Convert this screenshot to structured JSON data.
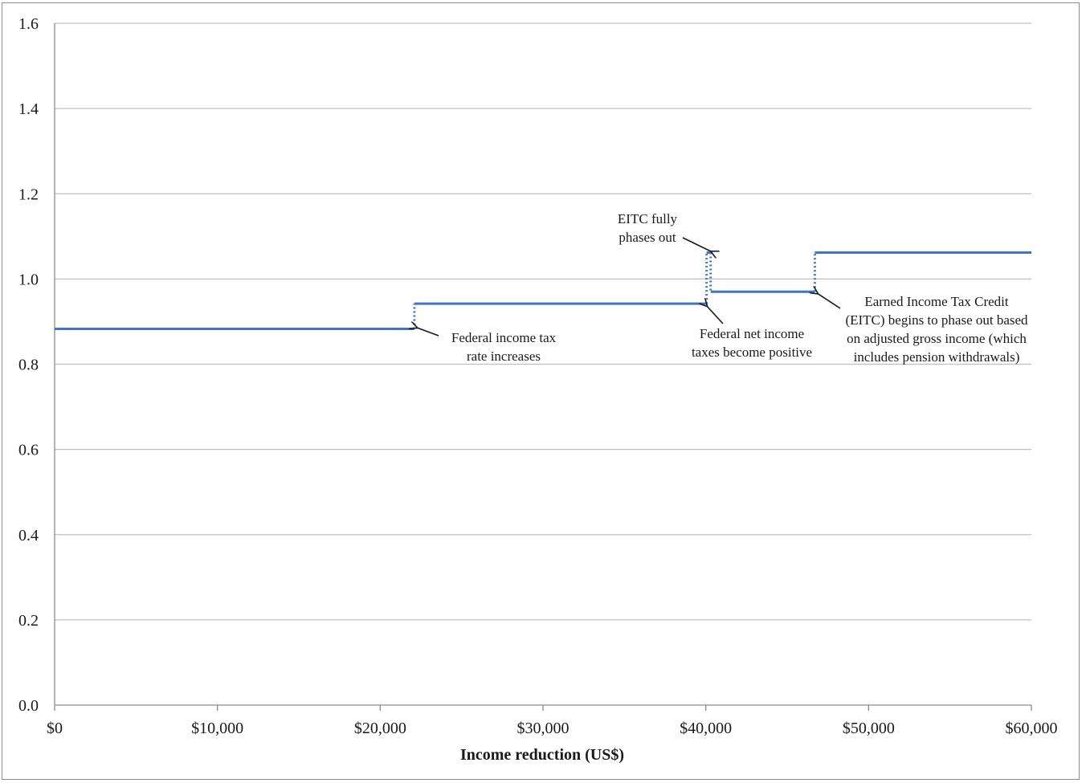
{
  "chart_data": {
    "type": "line",
    "title": "",
    "xlabel": "Income reduction (US$)",
    "ylabel": "",
    "xlim": [
      0,
      60000
    ],
    "ylim": [
      0,
      1.6
    ],
    "x_tick_values": [
      0,
      10000,
      20000,
      30000,
      40000,
      50000,
      60000
    ],
    "x_tick_labels": [
      "$0",
      "$10,000",
      "$20,000",
      "$30,000",
      "$40,000",
      "$50,000",
      "$60,000"
    ],
    "y_tick_values": [
      0,
      0.2,
      0.4,
      0.6,
      0.8,
      1.0,
      1.2,
      1.4,
      1.6
    ],
    "y_tick_labels": [
      "0.0",
      "0.2",
      "0.4",
      "0.6",
      "0.8",
      "1.0",
      "1.2",
      "1.4",
      "1.6"
    ],
    "grid": "horizontal",
    "line_color": "#4472c4",
    "segments": [
      {
        "x": [
          0,
          22100
        ],
        "y": [
          0.883,
          0.883
        ]
      },
      {
        "x": [
          22100,
          40050
        ],
        "y": [
          0.942,
          0.942
        ]
      },
      {
        "x": [
          40050,
          40300
        ],
        "y": [
          1.062,
          1.062
        ]
      },
      {
        "x": [
          40300,
          46700
        ],
        "y": [
          0.97,
          0.97
        ]
      },
      {
        "x": [
          46700,
          60000
        ],
        "y": [
          1.062,
          1.062
        ]
      }
    ],
    "jumps": [
      {
        "x": 22100,
        "y": [
          0.883,
          0.942
        ]
      },
      {
        "x": 40050,
        "y": [
          0.942,
          1.062
        ]
      },
      {
        "x": 40300,
        "y": [
          1.062,
          0.97
        ]
      },
      {
        "x": 46700,
        "y": [
          0.97,
          1.062
        ]
      }
    ],
    "annotations": [
      {
        "lines": [
          "Federal income tax",
          "rate increases"
        ],
        "arrow_to": [
          22300,
          0.885
        ]
      },
      {
        "lines": [
          "EITC fully",
          "phases out"
        ],
        "arrow_to": [
          40300,
          1.065
        ]
      },
      {
        "lines": [
          "Federal net income",
          "taxes become positive"
        ],
        "arrow_to": [
          40100,
          0.935
        ]
      },
      {
        "lines": [
          "Earned Income Tax Credit",
          "(EITC) begins to phase out based",
          "on adjusted gross income (which",
          "includes pension withdrawals)"
        ],
        "arrow_to": [
          46900,
          0.965
        ]
      }
    ]
  }
}
